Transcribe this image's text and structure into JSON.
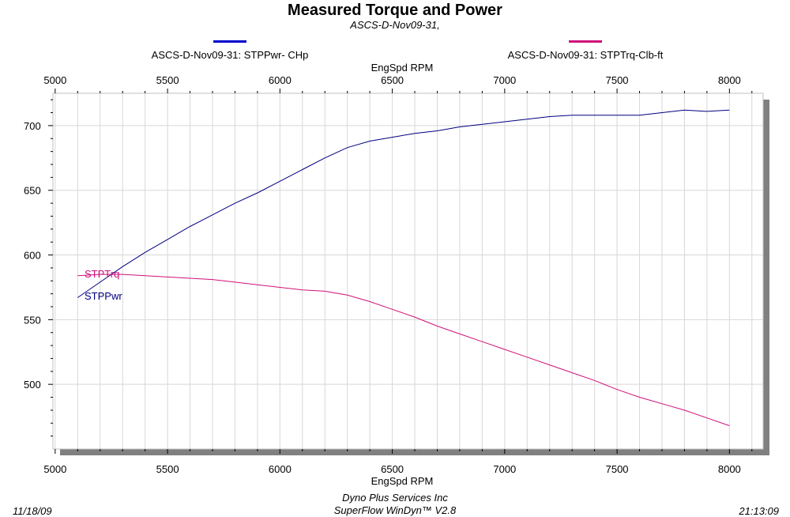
{
  "header": {
    "title": "Measured Torque and Power",
    "subtitle": "ASCS-D-Nov09-31,"
  },
  "legend": [
    {
      "label": "ASCS-D-Nov09-31: STPPwr- CHp",
      "color": "#0000cc"
    },
    {
      "label": "ASCS-D-Nov09-31: STPTrq-Clb-ft",
      "color": "#d0107a"
    }
  ],
  "footer": {
    "date": "11/18/09",
    "company": "Dyno Plus Services Inc",
    "software": "SuperFlow WinDyn™ V2.8",
    "time": "21:13:09"
  },
  "chart_data": {
    "type": "line",
    "title": "Measured Torque and Power",
    "xlabel": "EngSpd  RPM",
    "ylabel": "",
    "xlim": [
      4990,
      8150
    ],
    "ylim": [
      450,
      725
    ],
    "x_ticks": [
      5000,
      5500,
      6000,
      6500,
      7000,
      7500,
      8000
    ],
    "y_ticks": [
      500,
      550,
      600,
      650,
      700
    ],
    "grid": true,
    "series": [
      {
        "name": "STPPwr",
        "color": "#000080",
        "x": [
          5100,
          5200,
          5300,
          5400,
          5500,
          5600,
          5700,
          5800,
          5900,
          6000,
          6100,
          6200,
          6300,
          6400,
          6500,
          6600,
          6700,
          6800,
          6900,
          7000,
          7100,
          7200,
          7300,
          7400,
          7500,
          7600,
          7700,
          7800,
          7900,
          8000
        ],
        "values": [
          567,
          579,
          591,
          602,
          612,
          622,
          631,
          640,
          648,
          657,
          666,
          675,
          683,
          688,
          691,
          694,
          696,
          699,
          701,
          703,
          705,
          707,
          708,
          708,
          708,
          708,
          710,
          712,
          711,
          712
        ]
      },
      {
        "name": "STPTrq",
        "color": "#d0107a",
        "x": [
          5100,
          5200,
          5300,
          5400,
          5500,
          5600,
          5700,
          5800,
          5900,
          6000,
          6100,
          6200,
          6300,
          6400,
          6500,
          6600,
          6700,
          6800,
          6900,
          7000,
          7100,
          7200,
          7300,
          7400,
          7500,
          7600,
          7700,
          7800,
          7900,
          8000
        ],
        "values": [
          584,
          585,
          585,
          584,
          583,
          582,
          581,
          579,
          577,
          575,
          573,
          572,
          569,
          564,
          558,
          552,
          545,
          539,
          533,
          527,
          521,
          515,
          509,
          503,
          496,
          490,
          485,
          480,
          474,
          468
        ]
      }
    ]
  }
}
